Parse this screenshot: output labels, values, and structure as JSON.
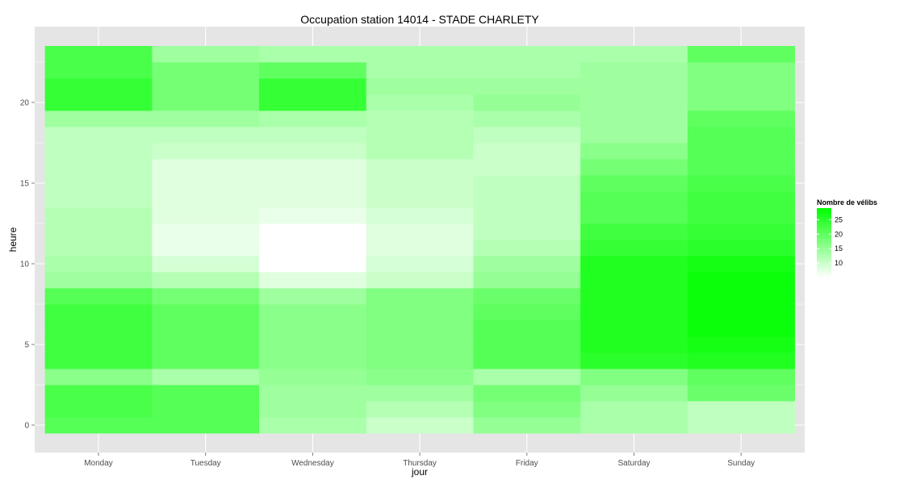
{
  "chart_data": {
    "type": "heatmap",
    "title": "Occupation station 14014 - STADE CHARLETY",
    "xlabel": "jour",
    "ylabel": "heure",
    "x_categories": [
      "Monday",
      "Tuesday",
      "Wednesday",
      "Thursday",
      "Friday",
      "Saturday",
      "Sunday"
    ],
    "y_range": [
      -0.5,
      23.5
    ],
    "y_ticks": [
      "0",
      "5",
      "10",
      "15",
      "20"
    ],
    "grid": true,
    "legend": {
      "title": "Nombre de vélibs",
      "labels": [
        "10",
        "15",
        "20",
        "25"
      ],
      "low_color": "#ffffff",
      "high_color": "#00ff00",
      "min": 5,
      "max": 29,
      "placement": "right"
    },
    "colors": {
      "panel": "#e5e5e5",
      "grid": "#ffffff"
    },
    "hours": [
      0,
      1,
      2,
      3,
      4,
      5,
      6,
      7,
      8,
      9,
      10,
      11,
      12,
      13,
      14,
      15,
      16,
      17,
      18,
      19,
      20,
      21,
      22,
      23
    ],
    "values": [
      [
        21,
        21,
        13,
        10,
        15,
        13,
        11
      ],
      [
        22,
        21,
        14,
        12,
        17,
        13,
        11
      ],
      [
        22,
        21,
        14,
        14,
        18,
        15,
        19
      ],
      [
        16,
        13,
        15,
        16,
        13,
        17,
        20
      ],
      [
        23,
        20,
        16,
        17,
        21,
        25,
        26
      ],
      [
        23,
        20,
        16,
        17,
        21,
        26,
        27
      ],
      [
        23,
        20,
        16,
        17,
        21,
        26,
        28
      ],
      [
        23,
        20,
        16,
        17,
        20,
        26,
        28
      ],
      [
        21,
        18,
        14,
        17,
        19,
        26,
        28
      ],
      [
        14,
        12,
        8,
        10,
        15,
        26,
        28
      ],
      [
        13,
        9,
        5,
        9,
        14,
        26,
        27
      ],
      [
        12,
        7,
        5,
        8,
        12,
        24,
        25
      ],
      [
        12,
        7,
        5,
        8,
        11,
        23,
        24
      ],
      [
        12,
        8,
        7,
        9,
        11,
        21,
        23
      ],
      [
        11,
        8,
        8,
        10,
        11,
        21,
        23
      ],
      [
        11,
        8,
        8,
        10,
        11,
        20,
        22
      ],
      [
        11,
        8,
        8,
        10,
        10,
        18,
        21
      ],
      [
        11,
        10,
        10,
        12,
        10,
        16,
        21
      ],
      [
        11,
        11,
        11,
        12,
        11,
        14,
        21
      ],
      [
        14,
        14,
        13,
        12,
        13,
        14,
        20
      ],
      [
        24,
        18,
        24,
        13,
        15,
        14,
        17
      ],
      [
        24,
        18,
        24,
        14,
        14,
        14,
        17
      ],
      [
        22,
        18,
        20,
        13,
        13,
        14,
        17
      ],
      [
        22,
        14,
        13,
        13,
        13,
        13,
        20
      ]
    ]
  }
}
